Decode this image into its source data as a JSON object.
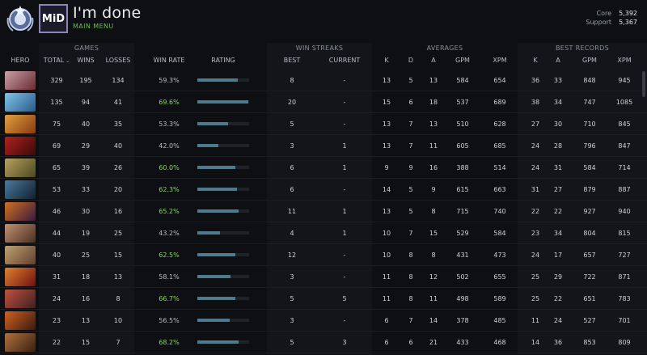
{
  "header": {
    "player_name": "I'm done",
    "avatar_text": "MiD",
    "menu_link": "MAIN MENU",
    "mmr": [
      {
        "label": "Core",
        "value": "5,392"
      },
      {
        "label": "Support",
        "value": "5,367"
      }
    ]
  },
  "groups": {
    "games": "GAMES",
    "win_streaks": "WIN STREAKS",
    "averages": "AVERAGES",
    "best_records": "BEST RECORDS"
  },
  "columns": {
    "hero": "HERO",
    "total": "TOTAL",
    "wins": "WINS",
    "losses": "LOSSES",
    "win_rate": "WIN RATE",
    "rating": "RATING",
    "best": "BEST",
    "current": "CURRENT",
    "avg_k": "K",
    "avg_d": "D",
    "avg_a": "A",
    "avg_gpm": "GPM",
    "avg_xpm": "XPM",
    "best_k": "K",
    "best_a": "A",
    "best_gpm": "GPM",
    "best_xpm": "XPM"
  },
  "colors": {
    "win_rate_good": "#8fd16a",
    "win_rate_neutral": "#b9bdc2",
    "rating_bar": "#4f7a8c",
    "menu_link": "#6fbf4f"
  },
  "rows": [
    {
      "hero_colors": [
        "#c9a0a6",
        "#6a2a32"
      ],
      "total": "329",
      "wins": "195",
      "losses": "134",
      "win_rate": "59.3%",
      "good": false,
      "rating": 0.78,
      "best": "8",
      "current": "-",
      "k": "13",
      "d": "5",
      "a": "13",
      "gpm": "584",
      "xpm": "654",
      "bk": "36",
      "ba": "33",
      "bgpm": "848",
      "bxpm": "945"
    },
    {
      "hero_colors": [
        "#7fc4e8",
        "#2a5a8a"
      ],
      "total": "135",
      "wins": "94",
      "losses": "41",
      "win_rate": "69.6%",
      "good": true,
      "rating": 0.98,
      "best": "20",
      "current": "-",
      "k": "15",
      "d": "6",
      "a": "18",
      "gpm": "537",
      "xpm": "689",
      "bk": "38",
      "ba": "34",
      "bgpm": "747",
      "bxpm": "1085"
    },
    {
      "hero_colors": [
        "#e0a040",
        "#8a3a10"
      ],
      "total": "75",
      "wins": "40",
      "losses": "35",
      "win_rate": "53.3%",
      "good": false,
      "rating": 0.6,
      "best": "5",
      "current": "-",
      "k": "13",
      "d": "7",
      "a": "13",
      "gpm": "510",
      "xpm": "628",
      "bk": "27",
      "ba": "30",
      "bgpm": "710",
      "bxpm": "845"
    },
    {
      "hero_colors": [
        "#b02020",
        "#3a0a0a"
      ],
      "total": "69",
      "wins": "29",
      "losses": "40",
      "win_rate": "42.0%",
      "good": false,
      "rating": 0.4,
      "best": "3",
      "current": "1",
      "k": "13",
      "d": "7",
      "a": "11",
      "gpm": "605",
      "xpm": "685",
      "bk": "24",
      "ba": "28",
      "bgpm": "796",
      "bxpm": "847"
    },
    {
      "hero_colors": [
        "#b8a060",
        "#4a4a20"
      ],
      "total": "65",
      "wins": "39",
      "losses": "26",
      "win_rate": "60.0%",
      "good": true,
      "rating": 0.73,
      "best": "6",
      "current": "1",
      "k": "9",
      "d": "9",
      "a": "16",
      "gpm": "388",
      "xpm": "514",
      "bk": "24",
      "ba": "31",
      "bgpm": "584",
      "bxpm": "714"
    },
    {
      "hero_colors": [
        "#4a7aa0",
        "#10202e"
      ],
      "total": "53",
      "wins": "33",
      "losses": "20",
      "win_rate": "62.3%",
      "good": true,
      "rating": 0.76,
      "best": "6",
      "current": "-",
      "k": "14",
      "d": "5",
      "a": "9",
      "gpm": "615",
      "xpm": "663",
      "bk": "31",
      "ba": "27",
      "bgpm": "879",
      "bxpm": "887"
    },
    {
      "hero_colors": [
        "#d07020",
        "#3a1a40"
      ],
      "total": "46",
      "wins": "30",
      "losses": "16",
      "win_rate": "65.2%",
      "good": true,
      "rating": 0.8,
      "best": "11",
      "current": "1",
      "k": "13",
      "d": "5",
      "a": "8",
      "gpm": "715",
      "xpm": "740",
      "bk": "22",
      "ba": "22",
      "bgpm": "927",
      "bxpm": "940"
    },
    {
      "hero_colors": [
        "#c09070",
        "#4a3020"
      ],
      "total": "44",
      "wins": "19",
      "losses": "25",
      "win_rate": "43.2%",
      "good": false,
      "rating": 0.44,
      "best": "4",
      "current": "1",
      "k": "10",
      "d": "7",
      "a": "15",
      "gpm": "529",
      "xpm": "584",
      "bk": "23",
      "ba": "34",
      "bgpm": "804",
      "bxpm": "815"
    },
    {
      "hero_colors": [
        "#c0a070",
        "#604030"
      ],
      "total": "40",
      "wins": "25",
      "losses": "15",
      "win_rate": "62.5%",
      "good": true,
      "rating": 0.74,
      "best": "12",
      "current": "-",
      "k": "10",
      "d": "8",
      "a": "8",
      "gpm": "431",
      "xpm": "473",
      "bk": "24",
      "ba": "17",
      "bgpm": "657",
      "bxpm": "727"
    },
    {
      "hero_colors": [
        "#e08030",
        "#701010"
      ],
      "total": "31",
      "wins": "18",
      "losses": "13",
      "win_rate": "58.1%",
      "good": false,
      "rating": 0.64,
      "best": "3",
      "current": "-",
      "k": "11",
      "d": "8",
      "a": "12",
      "gpm": "502",
      "xpm": "655",
      "bk": "25",
      "ba": "29",
      "bgpm": "722",
      "bxpm": "871"
    },
    {
      "hero_colors": [
        "#c05040",
        "#402020"
      ],
      "total": "24",
      "wins": "16",
      "losses": "8",
      "win_rate": "66.7%",
      "good": true,
      "rating": 0.74,
      "best": "5",
      "current": "5",
      "k": "11",
      "d": "8",
      "a": "11",
      "gpm": "498",
      "xpm": "589",
      "bk": "25",
      "ba": "22",
      "bgpm": "651",
      "bxpm": "783"
    },
    {
      "hero_colors": [
        "#d06020",
        "#3a1a10"
      ],
      "total": "23",
      "wins": "13",
      "losses": "10",
      "win_rate": "56.5%",
      "good": false,
      "rating": 0.62,
      "best": "3",
      "current": "-",
      "k": "6",
      "d": "7",
      "a": "14",
      "gpm": "378",
      "xpm": "485",
      "bk": "11",
      "ba": "24",
      "bgpm": "527",
      "bxpm": "701"
    },
    {
      "hero_colors": [
        "#b07040",
        "#3a2010"
      ],
      "total": "22",
      "wins": "15",
      "losses": "7",
      "win_rate": "68.2%",
      "good": true,
      "rating": 0.8,
      "best": "5",
      "current": "3",
      "k": "6",
      "d": "6",
      "a": "21",
      "gpm": "433",
      "xpm": "468",
      "bk": "14",
      "ba": "36",
      "bgpm": "853",
      "bxpm": "809"
    }
  ]
}
